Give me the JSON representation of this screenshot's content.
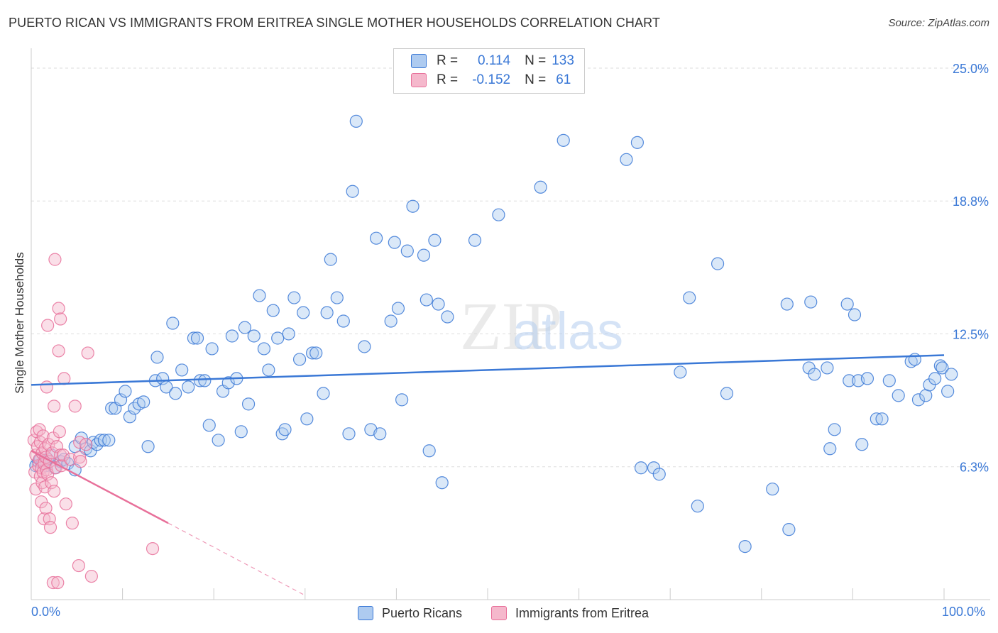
{
  "title": "PUERTO RICAN VS IMMIGRANTS FROM ERITREA SINGLE MOTHER HOUSEHOLDS CORRELATION CHART",
  "source": "Source: ZipAtlas.com",
  "colors": {
    "blue": "#3a78d6",
    "blue_fill": "#aecbf0",
    "pink": "#e8709a",
    "pink_fill": "#f5b8cc"
  },
  "watermark": {
    "zip": "ZIP",
    "atlas": "atlas"
  },
  "legend": {
    "rows": [
      {
        "r_label": "R =",
        "r_value": "0.114",
        "n_label": "N =",
        "n_value": "133"
      },
      {
        "r_label": "R =",
        "r_value": "-0.152",
        "n_label": "N =",
        "n_value": "61"
      }
    ]
  },
  "chart_data": {
    "type": "scatter",
    "title": "PUERTO RICAN VS IMMIGRANTS FROM ERITREA SINGLE MOTHER HOUSEHOLDS CORRELATION CHART",
    "xlabel": "",
    "ylabel": "Single Mother Households",
    "x_tick_labels": [
      "0.0%",
      "100.0%"
    ],
    "y_tick_labels": [
      "6.3%",
      "12.5%",
      "18.8%",
      "25.0%"
    ],
    "y_ticks": [
      6.25,
      12.5,
      18.75,
      25.0
    ],
    "xlim": [
      0,
      100
    ],
    "ylim": [
      0,
      25.6
    ],
    "series": [
      {
        "name": "Puerto Ricans",
        "r": 0.114,
        "n": 133,
        "trend": {
          "x": [
            0,
            100
          ],
          "y": [
            10.1,
            11.5
          ]
        },
        "points": [
          [
            0.5,
            6.3
          ],
          [
            0.8,
            6.5
          ],
          [
            1.0,
            6.6
          ],
          [
            1.2,
            6.4
          ],
          [
            1.4,
            6.5
          ],
          [
            1.6,
            6.3
          ],
          [
            1.8,
            6.6
          ],
          [
            2.2,
            6.8
          ],
          [
            2.6,
            6.2
          ],
          [
            3.2,
            6.5
          ],
          [
            3.6,
            6.6
          ],
          [
            4.0,
            6.4
          ],
          [
            4.8,
            6.1
          ],
          [
            4.8,
            7.2
          ],
          [
            5.5,
            7.6
          ],
          [
            6.0,
            7.1
          ],
          [
            6.5,
            7.0
          ],
          [
            6.8,
            7.4
          ],
          [
            7.2,
            7.3
          ],
          [
            7.6,
            7.5
          ],
          [
            8.0,
            7.5
          ],
          [
            8.5,
            7.5
          ],
          [
            8.8,
            9.0
          ],
          [
            9.2,
            9.0
          ],
          [
            9.8,
            9.4
          ],
          [
            10.3,
            9.8
          ],
          [
            10.8,
            8.6
          ],
          [
            11.3,
            9.0
          ],
          [
            11.8,
            9.2
          ],
          [
            12.3,
            9.3
          ],
          [
            12.8,
            7.2
          ],
          [
            13.6,
            10.3
          ],
          [
            13.8,
            11.4
          ],
          [
            14.4,
            10.4
          ],
          [
            14.8,
            10.0
          ],
          [
            15.5,
            13.0
          ],
          [
            15.8,
            9.7
          ],
          [
            16.5,
            10.8
          ],
          [
            17.2,
            10.0
          ],
          [
            17.8,
            12.3
          ],
          [
            18.2,
            12.3
          ],
          [
            18.5,
            10.3
          ],
          [
            19.0,
            10.3
          ],
          [
            19.5,
            8.2
          ],
          [
            19.8,
            11.8
          ],
          [
            20.5,
            7.5
          ],
          [
            21.0,
            9.8
          ],
          [
            21.6,
            10.2
          ],
          [
            22.0,
            12.4
          ],
          [
            22.5,
            10.4
          ],
          [
            23.0,
            7.9
          ],
          [
            23.4,
            12.8
          ],
          [
            23.8,
            9.2
          ],
          [
            24.4,
            12.4
          ],
          [
            25.0,
            14.3
          ],
          [
            25.5,
            11.8
          ],
          [
            26.0,
            10.8
          ],
          [
            26.5,
            13.6
          ],
          [
            27.0,
            12.3
          ],
          [
            27.5,
            7.8
          ],
          [
            27.8,
            8.0
          ],
          [
            28.2,
            12.5
          ],
          [
            28.8,
            14.2
          ],
          [
            29.4,
            11.3
          ],
          [
            29.8,
            13.5
          ],
          [
            30.2,
            8.5
          ],
          [
            30.8,
            11.6
          ],
          [
            31.2,
            11.6
          ],
          [
            32.0,
            9.7
          ],
          [
            32.4,
            13.5
          ],
          [
            32.8,
            16.0
          ],
          [
            33.5,
            14.2
          ],
          [
            34.2,
            13.1
          ],
          [
            34.8,
            7.8
          ],
          [
            35.2,
            19.2
          ],
          [
            35.6,
            22.5
          ],
          [
            36.5,
            11.9
          ],
          [
            37.2,
            8.0
          ],
          [
            37.8,
            17.0
          ],
          [
            38.2,
            7.8
          ],
          [
            39.4,
            13.1
          ],
          [
            39.8,
            16.8
          ],
          [
            40.2,
            13.7
          ],
          [
            40.6,
            9.4
          ],
          [
            41.2,
            16.4
          ],
          [
            41.8,
            18.5
          ],
          [
            43.0,
            16.2
          ],
          [
            43.3,
            14.1
          ],
          [
            43.6,
            7.0
          ],
          [
            44.2,
            16.9
          ],
          [
            44.6,
            13.9
          ],
          [
            45.0,
            5.5
          ],
          [
            45.6,
            13.3
          ],
          [
            48.6,
            16.9
          ],
          [
            51.2,
            18.1
          ],
          [
            55.8,
            19.4
          ],
          [
            58.3,
            21.6
          ],
          [
            65.2,
            20.7
          ],
          [
            66.4,
            21.5
          ],
          [
            66.8,
            6.2
          ],
          [
            68.2,
            6.2
          ],
          [
            68.8,
            5.9
          ],
          [
            71.1,
            10.7
          ],
          [
            72.1,
            14.2
          ],
          [
            73.0,
            4.4
          ],
          [
            75.2,
            15.8
          ],
          [
            76.2,
            9.7
          ],
          [
            78.2,
            2.5
          ],
          [
            81.2,
            5.2
          ],
          [
            82.8,
            13.9
          ],
          [
            83.0,
            3.3
          ],
          [
            85.2,
            10.9
          ],
          [
            85.4,
            14.0
          ],
          [
            85.8,
            10.6
          ],
          [
            87.2,
            10.9
          ],
          [
            87.5,
            7.1
          ],
          [
            88.0,
            8.0
          ],
          [
            89.4,
            13.9
          ],
          [
            89.6,
            10.3
          ],
          [
            90.2,
            13.4
          ],
          [
            90.6,
            10.3
          ],
          [
            91.0,
            7.3
          ],
          [
            91.6,
            10.4
          ],
          [
            92.6,
            8.5
          ],
          [
            93.2,
            8.5
          ],
          [
            94.0,
            10.3
          ],
          [
            95.0,
            9.6
          ],
          [
            96.4,
            11.2
          ],
          [
            96.8,
            11.3
          ],
          [
            97.2,
            9.4
          ],
          [
            98.0,
            9.6
          ],
          [
            98.4,
            10.1
          ],
          [
            99.0,
            10.4
          ],
          [
            99.6,
            11.0
          ],
          [
            99.8,
            10.9
          ],
          [
            100.4,
            9.8
          ],
          [
            100.8,
            10.6
          ]
        ]
      },
      {
        "name": "Immigrants from Eritrea",
        "r": -0.152,
        "n": 61,
        "trend": {
          "x": [
            0,
            15
          ],
          "y": [
            7.0,
            3.6
          ]
        },
        "trend_dashed": {
          "x": [
            15,
            30
          ],
          "y": [
            3.6,
            0.2
          ]
        },
        "points": [
          [
            0.3,
            7.5
          ],
          [
            0.4,
            6.0
          ],
          [
            0.5,
            6.8
          ],
          [
            0.5,
            5.2
          ],
          [
            0.6,
            7.9
          ],
          [
            0.7,
            7.2
          ],
          [
            0.8,
            6.3
          ],
          [
            0.9,
            8.0
          ],
          [
            0.9,
            6.6
          ],
          [
            1.0,
            5.8
          ],
          [
            1.0,
            7.4
          ],
          [
            1.1,
            6.2
          ],
          [
            1.1,
            4.6
          ],
          [
            1.2,
            6.9
          ],
          [
            1.2,
            5.5
          ],
          [
            1.3,
            7.7
          ],
          [
            1.3,
            6.0
          ],
          [
            1.4,
            3.8
          ],
          [
            1.4,
            6.4
          ],
          [
            1.5,
            5.3
          ],
          [
            1.5,
            7.1
          ],
          [
            1.6,
            6.7
          ],
          [
            1.6,
            4.3
          ],
          [
            1.7,
            6.1
          ],
          [
            1.7,
            10.0
          ],
          [
            1.8,
            12.9
          ],
          [
            1.8,
            5.9
          ],
          [
            1.9,
            7.3
          ],
          [
            2.0,
            3.8
          ],
          [
            2.0,
            6.5
          ],
          [
            2.1,
            3.4
          ],
          [
            2.2,
            5.5
          ],
          [
            2.3,
            6.9
          ],
          [
            2.4,
            0.8
          ],
          [
            2.4,
            7.6
          ],
          [
            2.5,
            9.1
          ],
          [
            2.5,
            5.1
          ],
          [
            2.6,
            16.0
          ],
          [
            2.7,
            6.2
          ],
          [
            2.8,
            7.2
          ],
          [
            2.9,
            0.8
          ],
          [
            3.0,
            11.7
          ],
          [
            3.0,
            13.7
          ],
          [
            3.1,
            7.9
          ],
          [
            3.2,
            6.8
          ],
          [
            3.2,
            13.2
          ],
          [
            3.3,
            6.3
          ],
          [
            3.5,
            6.8
          ],
          [
            3.6,
            10.4
          ],
          [
            3.8,
            4.5
          ],
          [
            4.3,
            6.6
          ],
          [
            4.5,
            3.6
          ],
          [
            5.2,
            1.6
          ],
          [
            4.8,
            9.1
          ],
          [
            5.3,
            6.7
          ],
          [
            5.4,
            6.5
          ],
          [
            5.3,
            7.4
          ],
          [
            6.2,
            11.6
          ],
          [
            6.0,
            7.3
          ],
          [
            6.6,
            1.1
          ],
          [
            13.3,
            2.4
          ]
        ]
      }
    ]
  },
  "bottom_legend": [
    "Puerto Ricans",
    "Immigrants from Eritrea"
  ]
}
